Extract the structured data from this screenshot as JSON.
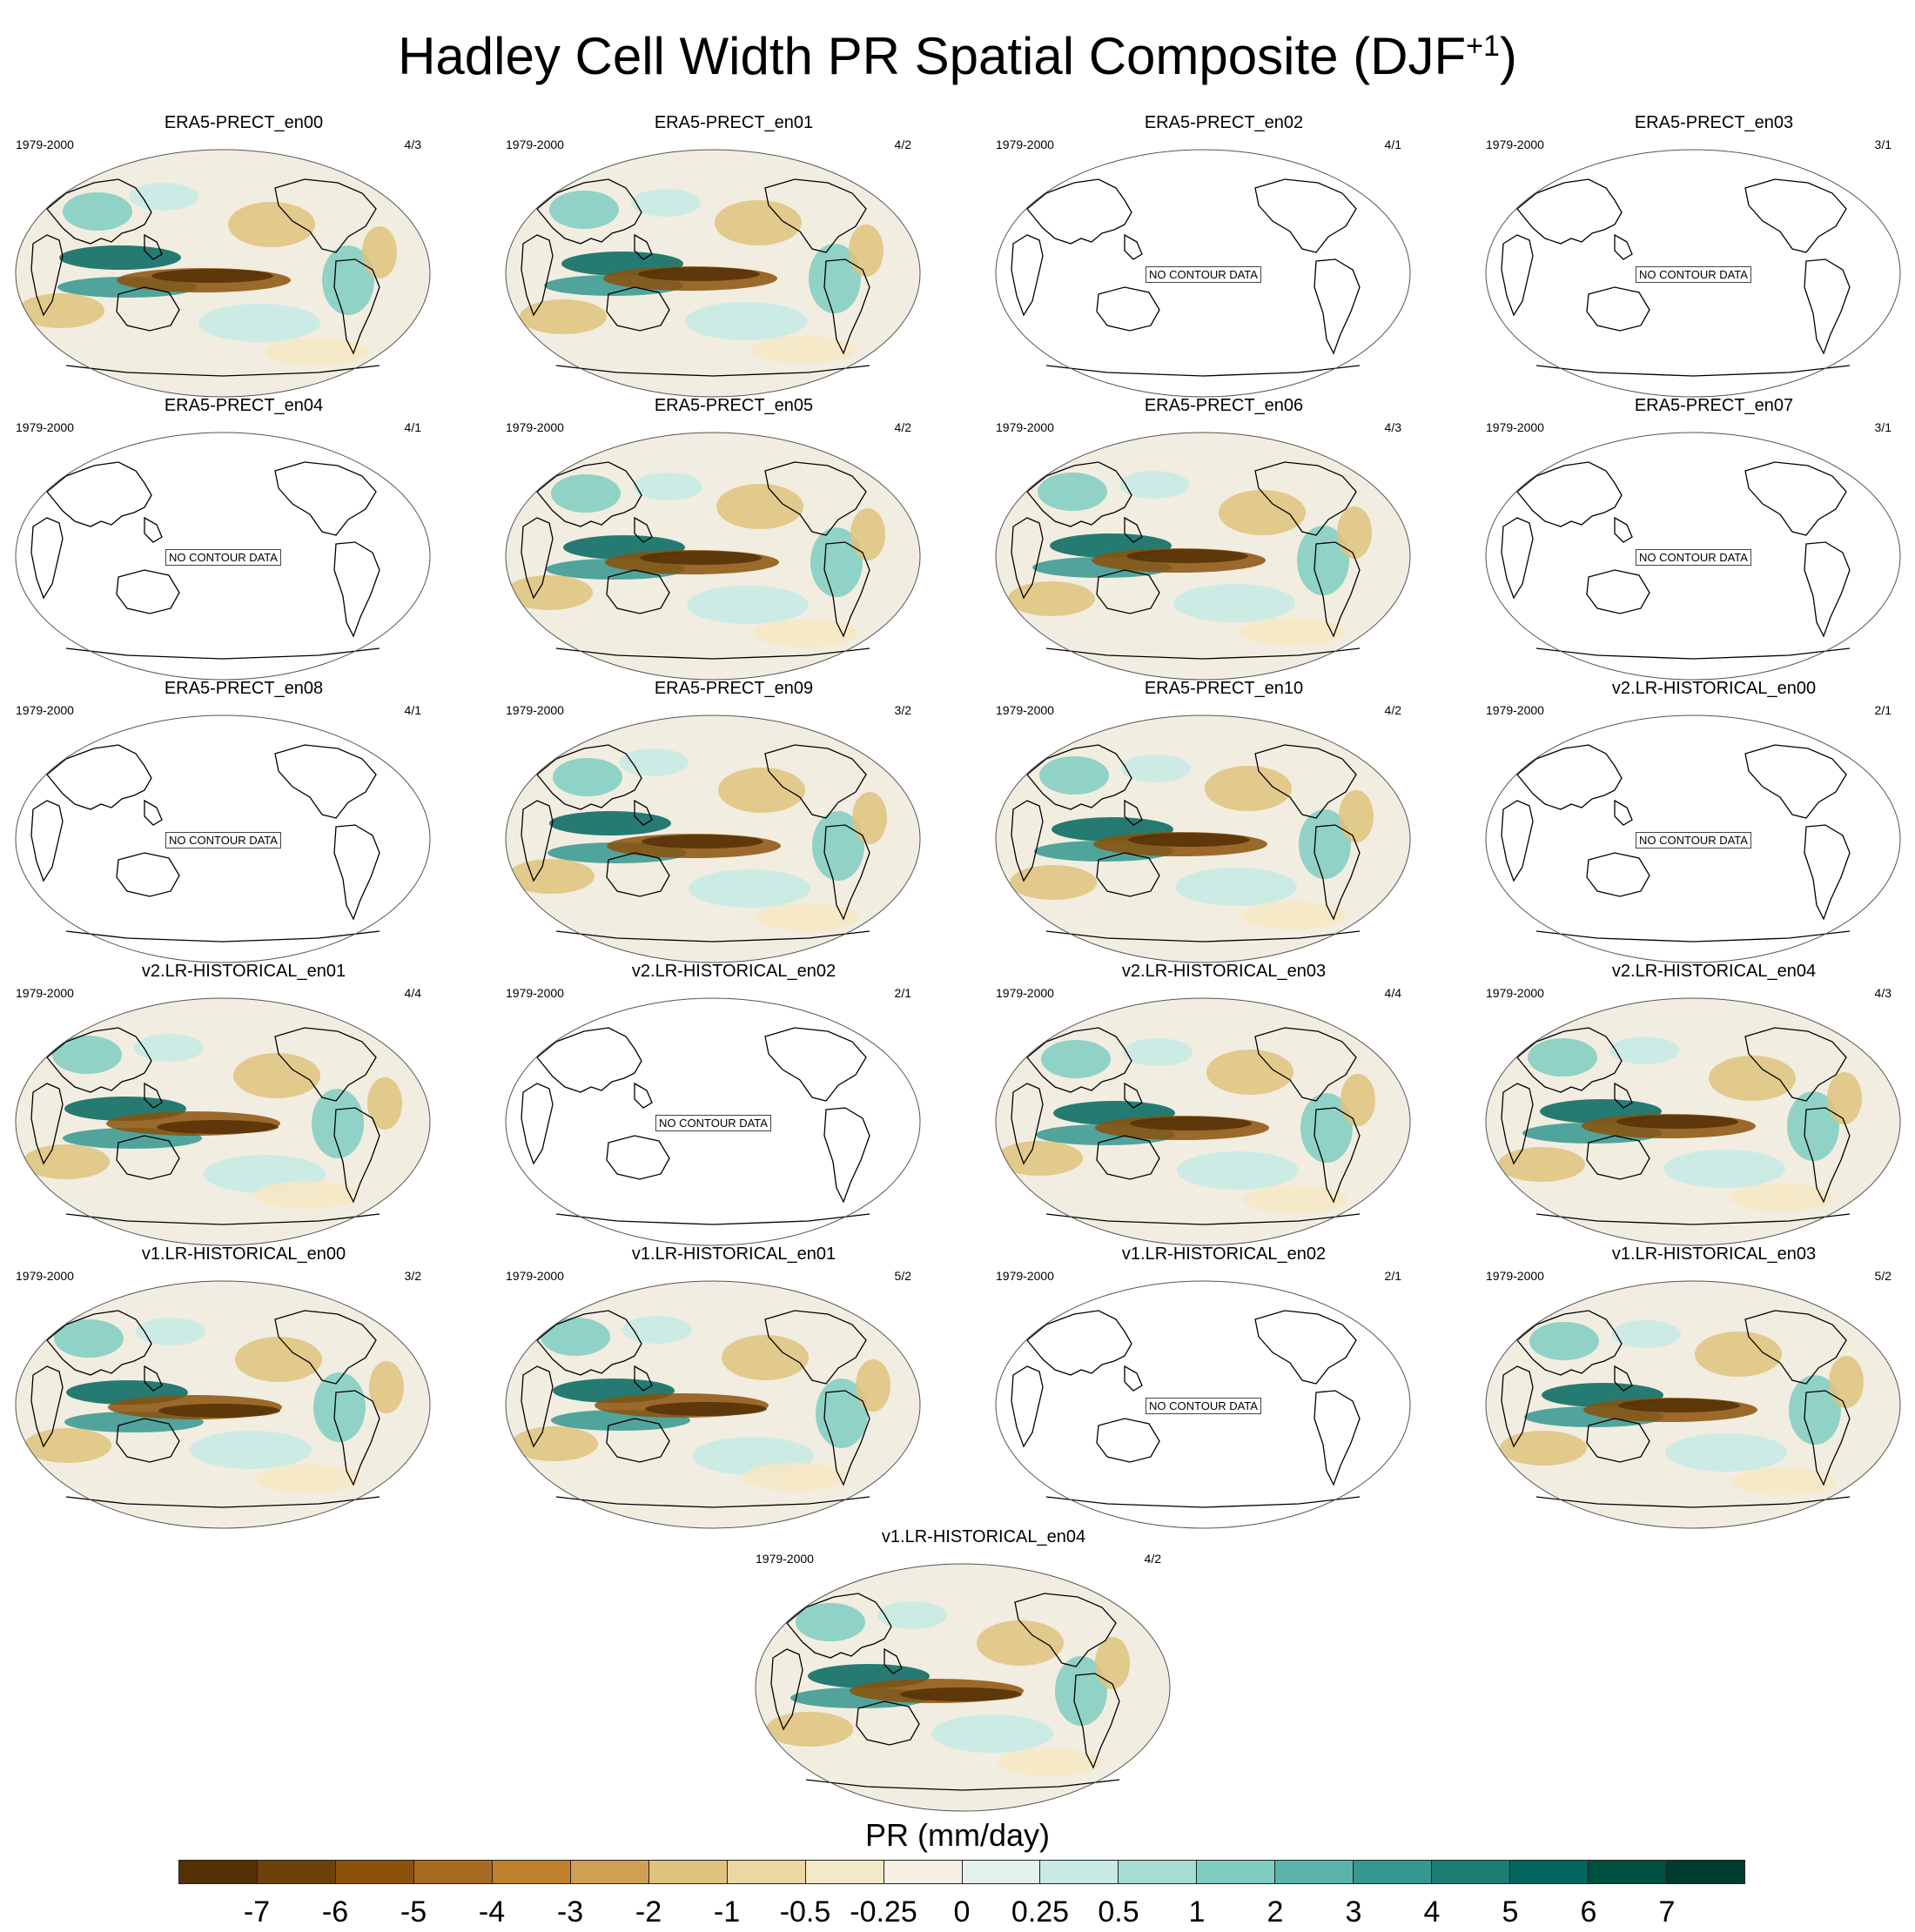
{
  "title": "Hadley Cell Width PR Spatial Composite (DJF",
  "title_sup": "+1",
  "title_close": ")",
  "no_contour_label": "NO CONTOUR DATA",
  "panels": [
    {
      "title": "ERA5-PRECT_en00",
      "period": "1979-2000",
      "ratio": "4/3",
      "has_data": true
    },
    {
      "title": "ERA5-PRECT_en01",
      "period": "1979-2000",
      "ratio": "4/2",
      "has_data": true
    },
    {
      "title": "ERA5-PRECT_en02",
      "period": "1979-2000",
      "ratio": "4/1",
      "has_data": false
    },
    {
      "title": "ERA5-PRECT_en03",
      "period": "1979-2000",
      "ratio": "3/1",
      "has_data": false
    },
    {
      "title": "ERA5-PRECT_en04",
      "period": "1979-2000",
      "ratio": "4/1",
      "has_data": false
    },
    {
      "title": "ERA5-PRECT_en05",
      "period": "1979-2000",
      "ratio": "4/2",
      "has_data": true
    },
    {
      "title": "ERA5-PRECT_en06",
      "period": "1979-2000",
      "ratio": "4/3",
      "has_data": true
    },
    {
      "title": "ERA5-PRECT_en07",
      "period": "1979-2000",
      "ratio": "3/1",
      "has_data": false
    },
    {
      "title": "ERA5-PRECT_en08",
      "period": "1979-2000",
      "ratio": "4/1",
      "has_data": false
    },
    {
      "title": "ERA5-PRECT_en09",
      "period": "1979-2000",
      "ratio": "3/2",
      "has_data": true
    },
    {
      "title": "ERA5-PRECT_en10",
      "period": "1979-2000",
      "ratio": "4/2",
      "has_data": true
    },
    {
      "title": "v2.LR-HISTORICAL_en00",
      "period": "1979-2000",
      "ratio": "2/1",
      "has_data": false
    },
    {
      "title": "v2.LR-HISTORICAL_en01",
      "period": "1979-2000",
      "ratio": "4/4",
      "has_data": true
    },
    {
      "title": "v2.LR-HISTORICAL_en02",
      "period": "1979-2000",
      "ratio": "2/1",
      "has_data": false
    },
    {
      "title": "v2.LR-HISTORICAL_en03",
      "period": "1979-2000",
      "ratio": "4/4",
      "has_data": true
    },
    {
      "title": "v2.LR-HISTORICAL_en04",
      "period": "1979-2000",
      "ratio": "4/3",
      "has_data": true
    },
    {
      "title": "v1.LR-HISTORICAL_en00",
      "period": "1979-2000",
      "ratio": "3/2",
      "has_data": true
    },
    {
      "title": "v1.LR-HISTORICAL_en01",
      "period": "1979-2000",
      "ratio": "5/2",
      "has_data": true
    },
    {
      "title": "v1.LR-HISTORICAL_en02",
      "period": "1979-2000",
      "ratio": "2/1",
      "has_data": false
    },
    {
      "title": "v1.LR-HISTORICAL_en03",
      "period": "1979-2000",
      "ratio": "5/2",
      "has_data": true
    },
    {
      "title": "v1.LR-HISTORICAL_en04",
      "period": "1979-2000",
      "ratio": "4/2",
      "has_data": true
    }
  ],
  "colorbar": {
    "title": "PR (mm/day)",
    "levels": [
      "-7",
      "-6",
      "-5",
      "-4",
      "-3",
      "-2",
      "-1",
      "-0.5",
      "-0.25",
      "0",
      "0.25",
      "0.5",
      "1",
      "2",
      "3",
      "4",
      "5",
      "6",
      "7"
    ],
    "colors": [
      "#543005",
      "#6e400a",
      "#8c510a",
      "#a86a20",
      "#bf812d",
      "#d0a055",
      "#dfc27d",
      "#ebd6a4",
      "#f3e8c8",
      "#f6efe3",
      "#e4f1ef",
      "#c7eae5",
      "#a6dcd2",
      "#80cdc1",
      "#5ab4ab",
      "#35978f",
      "#1c7c72",
      "#01665e",
      "#00503f",
      "#003c30"
    ]
  }
}
